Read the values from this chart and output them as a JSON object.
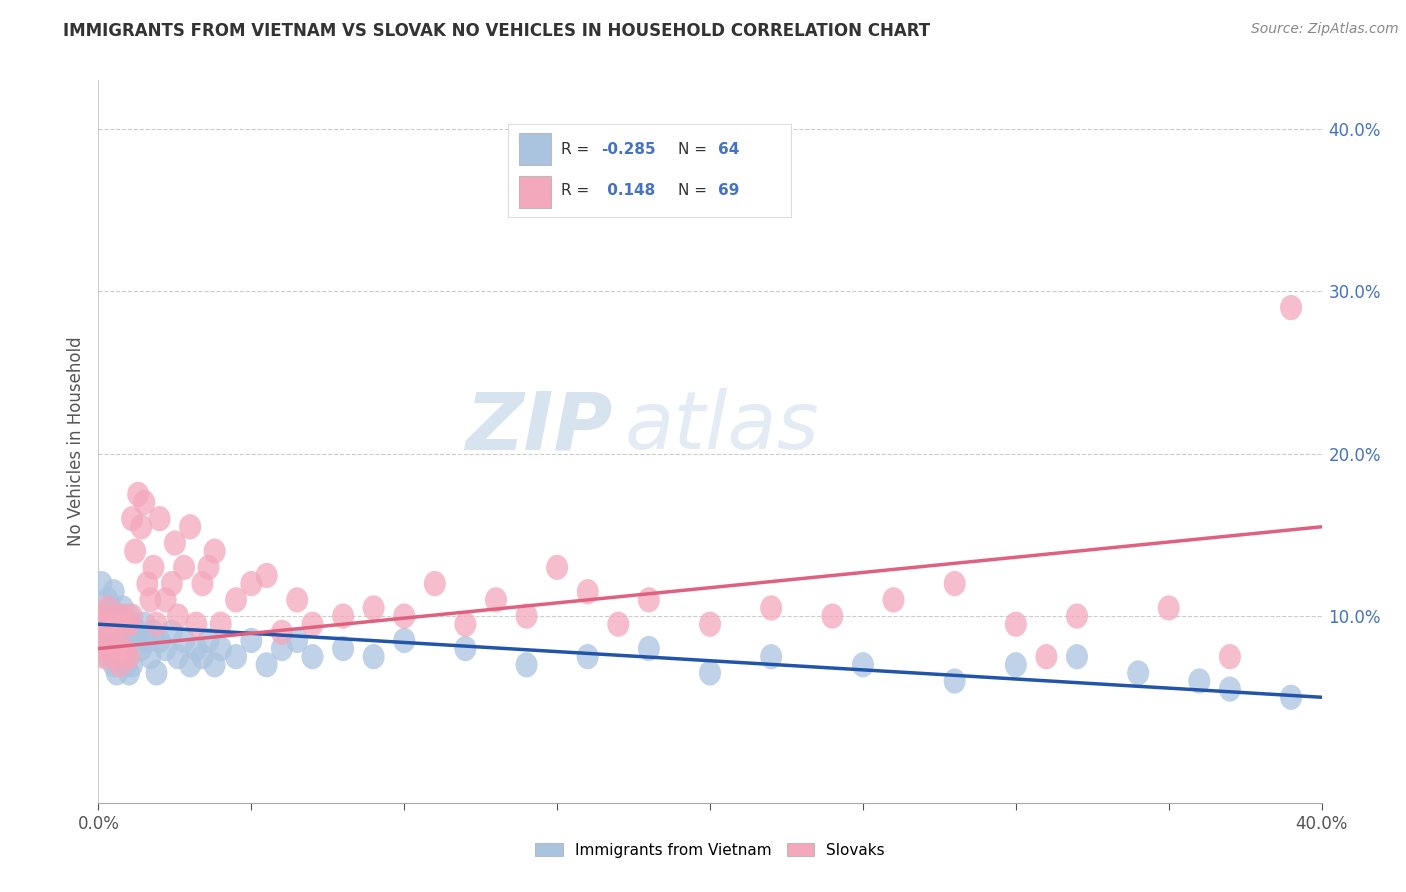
{
  "title": "IMMIGRANTS FROM VIETNAM VS SLOVAK NO VEHICLES IN HOUSEHOLD CORRELATION CHART",
  "source": "Source: ZipAtlas.com",
  "ylabel": "No Vehicles in Household",
  "yticks_right": [
    "10.0%",
    "20.0%",
    "30.0%",
    "40.0%"
  ],
  "yticks_right_vals": [
    0.1,
    0.2,
    0.3,
    0.4
  ],
  "xmin": 0.0,
  "xmax": 0.4,
  "ymin": -0.015,
  "ymax": 0.43,
  "blue_R": -0.285,
  "blue_N": 64,
  "pink_R": 0.148,
  "pink_N": 69,
  "blue_color": "#aac4e0",
  "pink_color": "#f4a8bc",
  "blue_line_color": "#2255aa",
  "pink_line_color": "#e06080",
  "legend_label_blue": "Immigrants from Vietnam",
  "legend_label_pink": "Slovaks",
  "watermark_zip": "ZIP",
  "watermark_atlas": "atlas",
  "background_color": "#ffffff",
  "blue_scatter_x": [
    0.001,
    0.001,
    0.002,
    0.002,
    0.003,
    0.003,
    0.004,
    0.004,
    0.005,
    0.005,
    0.006,
    0.006,
    0.007,
    0.007,
    0.008,
    0.008,
    0.009,
    0.009,
    0.01,
    0.01,
    0.011,
    0.011,
    0.012,
    0.013,
    0.014,
    0.015,
    0.016,
    0.017,
    0.018,
    0.019,
    0.02,
    0.022,
    0.024,
    0.026,
    0.028,
    0.03,
    0.032,
    0.034,
    0.036,
    0.038,
    0.04,
    0.045,
    0.05,
    0.055,
    0.06,
    0.065,
    0.07,
    0.08,
    0.09,
    0.1,
    0.12,
    0.14,
    0.16,
    0.18,
    0.2,
    0.22,
    0.25,
    0.28,
    0.3,
    0.32,
    0.34,
    0.36,
    0.37,
    0.39
  ],
  "blue_scatter_y": [
    0.12,
    0.09,
    0.1,
    0.085,
    0.11,
    0.075,
    0.105,
    0.08,
    0.115,
    0.07,
    0.095,
    0.065,
    0.1,
    0.075,
    0.105,
    0.08,
    0.09,
    0.07,
    0.1,
    0.065,
    0.095,
    0.07,
    0.085,
    0.09,
    0.08,
    0.095,
    0.085,
    0.075,
    0.09,
    0.065,
    0.085,
    0.08,
    0.09,
    0.075,
    0.085,
    0.07,
    0.08,
    0.075,
    0.085,
    0.07,
    0.08,
    0.075,
    0.085,
    0.07,
    0.08,
    0.085,
    0.075,
    0.08,
    0.075,
    0.085,
    0.08,
    0.07,
    0.075,
    0.08,
    0.065,
    0.075,
    0.07,
    0.06,
    0.07,
    0.075,
    0.065,
    0.06,
    0.055,
    0.05
  ],
  "pink_scatter_x": [
    0.001,
    0.001,
    0.002,
    0.002,
    0.003,
    0.003,
    0.004,
    0.005,
    0.005,
    0.006,
    0.006,
    0.007,
    0.007,
    0.008,
    0.008,
    0.009,
    0.009,
    0.01,
    0.01,
    0.011,
    0.011,
    0.012,
    0.013,
    0.014,
    0.015,
    0.016,
    0.017,
    0.018,
    0.019,
    0.02,
    0.022,
    0.024,
    0.025,
    0.026,
    0.028,
    0.03,
    0.032,
    0.034,
    0.036,
    0.038,
    0.04,
    0.045,
    0.05,
    0.055,
    0.06,
    0.065,
    0.07,
    0.08,
    0.09,
    0.1,
    0.11,
    0.12,
    0.13,
    0.14,
    0.15,
    0.16,
    0.17,
    0.18,
    0.2,
    0.22,
    0.24,
    0.26,
    0.28,
    0.3,
    0.31,
    0.32,
    0.35,
    0.37,
    0.39
  ],
  "pink_scatter_y": [
    0.1,
    0.08,
    0.095,
    0.075,
    0.105,
    0.085,
    0.09,
    0.095,
    0.075,
    0.1,
    0.08,
    0.095,
    0.07,
    0.1,
    0.08,
    0.095,
    0.075,
    0.095,
    0.075,
    0.1,
    0.16,
    0.14,
    0.175,
    0.155,
    0.17,
    0.12,
    0.11,
    0.13,
    0.095,
    0.16,
    0.11,
    0.12,
    0.145,
    0.1,
    0.13,
    0.155,
    0.095,
    0.12,
    0.13,
    0.14,
    0.095,
    0.11,
    0.12,
    0.125,
    0.09,
    0.11,
    0.095,
    0.1,
    0.105,
    0.1,
    0.12,
    0.095,
    0.11,
    0.1,
    0.13,
    0.115,
    0.095,
    0.11,
    0.095,
    0.105,
    0.1,
    0.11,
    0.12,
    0.095,
    0.075,
    0.1,
    0.105,
    0.075,
    0.29
  ]
}
